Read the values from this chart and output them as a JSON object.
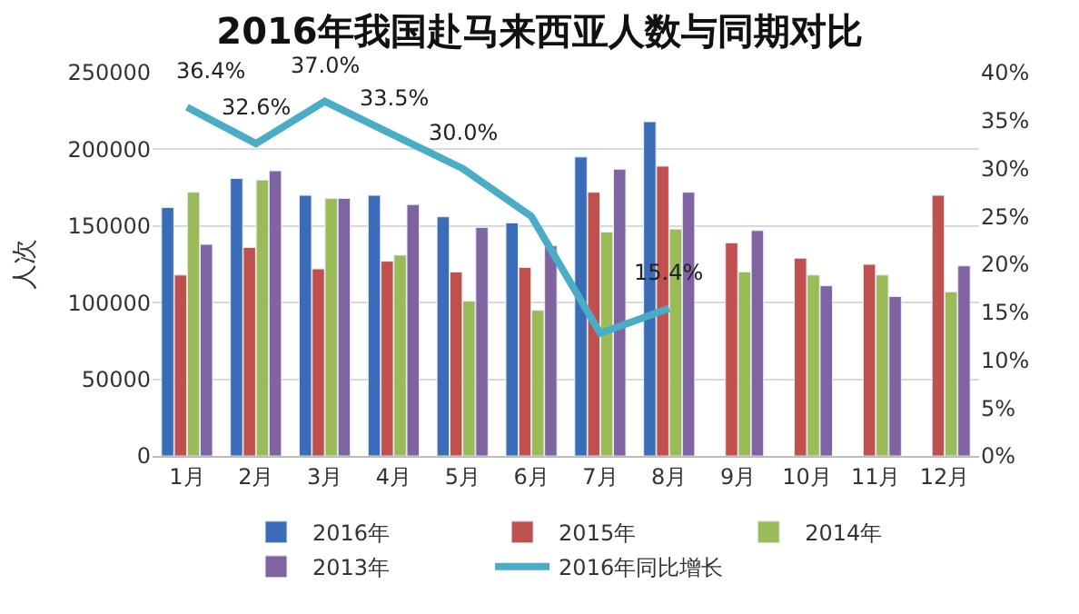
{
  "chart_data": {
    "type": "bar",
    "title": "2016年我国赴马来西亚人数与同期对比",
    "ylabel": "人次",
    "categories": [
      "1月",
      "2月",
      "3月",
      "4月",
      "5月",
      "6月",
      "7月",
      "8月",
      "9月",
      "10月",
      "11月",
      "12月"
    ],
    "series": [
      {
        "name": "2016年",
        "color": "#3b6cb7",
        "values": [
          162000,
          181000,
          170000,
          170000,
          156000,
          152000,
          195000,
          218000,
          null,
          null,
          null,
          null
        ]
      },
      {
        "name": "2015年",
        "color": "#c0504d",
        "values": [
          118000,
          136000,
          122000,
          127000,
          120000,
          123000,
          172000,
          189000,
          139000,
          129000,
          125000,
          170000
        ]
      },
      {
        "name": "2014年",
        "color": "#9bbb59",
        "values": [
          172000,
          180000,
          168000,
          131000,
          101000,
          95000,
          146000,
          148000,
          120000,
          118000,
          118000,
          107000
        ]
      },
      {
        "name": "2013年",
        "color": "#8064a2",
        "values": [
          138000,
          186000,
          168000,
          164000,
          149000,
          137000,
          187000,
          172000,
          147000,
          111000,
          104000,
          124000
        ]
      },
      {
        "name": "2016年同比增长",
        "type": "line",
        "axis": "y2",
        "color": "#4bacc6",
        "values": [
          36.4,
          32.6,
          37.0,
          33.5,
          30.0,
          25.0,
          12.8,
          15.4,
          null,
          null,
          null,
          null
        ],
        "value_labels": [
          "36.4%",
          "32.6%",
          "37.0%",
          "33.5%",
          "30.0%",
          null,
          null,
          "15.4%",
          null,
          null,
          null,
          null
        ]
      }
    ],
    "ylim": [
      0,
      250000
    ],
    "yticks": [
      0,
      50000,
      100000,
      150000,
      200000,
      250000
    ],
    "y2lim": [
      0,
      40
    ],
    "y2ticks": [
      {
        "value": 0,
        "label": "0%"
      },
      {
        "value": 5,
        "label": "5%"
      },
      {
        "value": 10,
        "label": "10%"
      },
      {
        "value": 15,
        "label": "15%"
      },
      {
        "value": 20,
        "label": "20%"
      },
      {
        "value": 25,
        "label": "25%"
      },
      {
        "value": 30,
        "label": "30%"
      },
      {
        "value": 35,
        "label": "35%"
      },
      {
        "value": 40,
        "label": "40%"
      }
    ],
    "grid": "y",
    "legend": "bottom",
    "marker": "none",
    "line_style": "solid"
  }
}
